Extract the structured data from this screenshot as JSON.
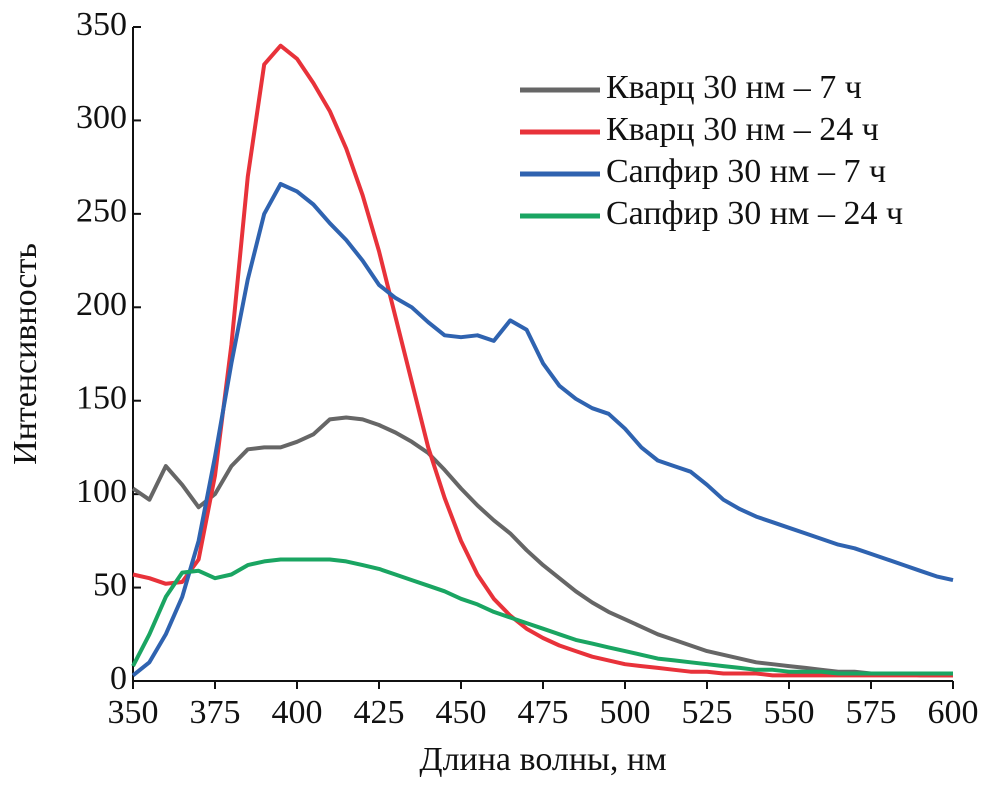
{
  "chart_data": {
    "type": "line",
    "x_label": "Длина волны, нм",
    "y_label": "Интенсивность",
    "x": [
      350,
      355,
      360,
      365,
      370,
      375,
      380,
      385,
      390,
      395,
      400,
      405,
      410,
      415,
      420,
      425,
      430,
      435,
      440,
      445,
      450,
      455,
      460,
      465,
      470,
      475,
      480,
      485,
      490,
      495,
      500,
      505,
      510,
      515,
      520,
      525,
      530,
      535,
      540,
      545,
      550,
      555,
      560,
      565,
      570,
      575,
      580,
      585,
      590,
      595,
      600
    ],
    "series": [
      {
        "name": "Кварц 30 нм – 7 ч",
        "color": "#666666",
        "values": [
          103,
          97,
          115,
          105,
          93,
          100,
          115,
          124,
          125,
          125,
          128,
          132,
          140,
          141,
          140,
          137,
          133,
          128,
          122,
          113,
          103,
          94,
          86,
          79,
          70,
          62,
          55,
          48,
          42,
          37,
          33,
          29,
          25,
          22,
          19,
          16,
          14,
          12,
          10,
          9,
          8,
          7,
          6,
          5,
          5,
          4,
          4,
          4,
          3,
          3,
          3
        ]
      },
      {
        "name": "Кварц 30 нм – 24 ч",
        "color": "#e8323a",
        "values": [
          57,
          55,
          52,
          53,
          65,
          110,
          180,
          270,
          330,
          340,
          333,
          320,
          305,
          285,
          260,
          230,
          195,
          160,
          125,
          98,
          75,
          57,
          44,
          35,
          28,
          23,
          19,
          16,
          13,
          11,
          9,
          8,
          7,
          6,
          5,
          5,
          4,
          4,
          4,
          3,
          3,
          3,
          3,
          3,
          3,
          3,
          3,
          3,
          3,
          3,
          3
        ]
      },
      {
        "name": "Сапфир 30 нм – 7 ч",
        "color": "#2f63b0",
        "values": [
          3,
          10,
          25,
          45,
          75,
          120,
          170,
          215,
          250,
          266,
          262,
          255,
          245,
          236,
          225,
          212,
          205,
          200,
          192,
          185,
          184,
          185,
          182,
          193,
          188,
          170,
          158,
          151,
          146,
          143,
          135,
          125,
          118,
          115,
          112,
          105,
          97,
          92,
          88,
          85,
          82,
          79,
          76,
          73,
          71,
          68,
          65,
          62,
          59,
          56,
          54
        ]
      },
      {
        "name": "Сапфир 30 нм – 24 ч",
        "color": "#1aa562",
        "values": [
          8,
          25,
          45,
          58,
          59,
          55,
          57,
          62,
          64,
          65,
          65,
          65,
          65,
          64,
          62,
          60,
          57,
          54,
          51,
          48,
          44,
          41,
          37,
          34,
          31,
          28,
          25,
          22,
          20,
          18,
          16,
          14,
          12,
          11,
          10,
          9,
          8,
          7,
          6,
          6,
          5,
          5,
          5,
          4,
          4,
          4,
          4,
          4,
          4,
          4,
          4
        ]
      }
    ],
    "xlim": [
      350,
      600
    ],
    "xticks": [
      350,
      375,
      400,
      425,
      450,
      475,
      500,
      525,
      550,
      575,
      600
    ],
    "ylim": [
      0,
      350
    ],
    "yticks": [
      0,
      50,
      100,
      150,
      200,
      250,
      300,
      350
    ],
    "legend": "upper right"
  }
}
